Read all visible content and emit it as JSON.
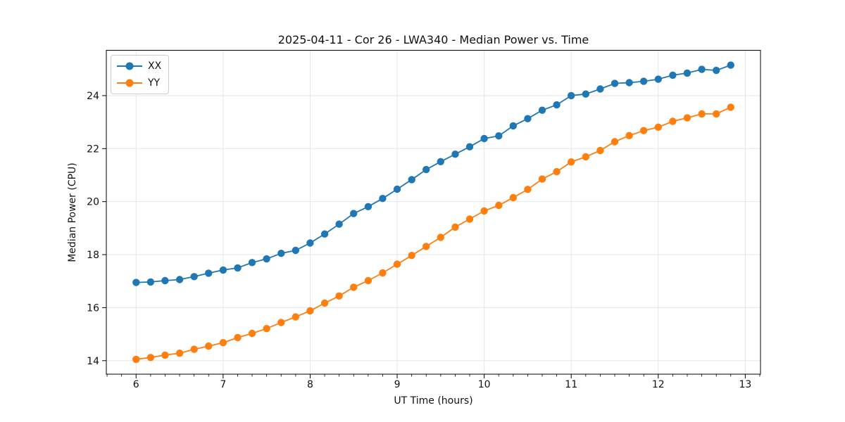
{
  "figure": {
    "title": "2025-04-11 - Cor 26 - LWA340 - Median Power vs. Time",
    "xlabel": "UT Time (hours)",
    "ylabel": "Median Power (CPU)"
  },
  "legend": {
    "position": "upper left",
    "items": [
      {
        "label": "XX",
        "color": "#1f77b4"
      },
      {
        "label": "YY",
        "color": "#ff7f0e"
      }
    ]
  },
  "colors": {
    "series_xx": "#1f77b4",
    "series_yy": "#ff7f0e",
    "grid": "#e6e6e6",
    "axis": "#000000",
    "text": "#111111",
    "background": "#ffffff"
  },
  "chart_data": {
    "type": "line",
    "title": "2025-04-11 - Cor 26 - LWA340 - Median Power vs. Time",
    "xlabel": "UT Time (hours)",
    "ylabel": "Median Power (CPU)",
    "grid": true,
    "legend_position": "upper left",
    "marker": "circle",
    "xlim": [
      5.658,
      13.175
    ],
    "ylim": [
      13.49,
      25.71
    ],
    "xticks": [
      6,
      7,
      8,
      9,
      10,
      11,
      12,
      13
    ],
    "yticks": [
      14,
      16,
      18,
      20,
      22,
      24
    ],
    "x_minor_step": 0.16667,
    "x": [
      6.0,
      6.167,
      6.333,
      6.5,
      6.667,
      6.833,
      7.0,
      7.167,
      7.333,
      7.5,
      7.667,
      7.833,
      8.0,
      8.167,
      8.333,
      8.5,
      8.667,
      8.833,
      9.0,
      9.167,
      9.333,
      9.5,
      9.667,
      9.833,
      10.0,
      10.167,
      10.333,
      10.5,
      10.667,
      10.833,
      11.0,
      11.167,
      11.333,
      11.5,
      11.667,
      11.833,
      12.0,
      12.167,
      12.333,
      12.5,
      12.667,
      12.833
    ],
    "series": [
      {
        "name": "XX",
        "color": "#1f77b4",
        "values": [
          16.95,
          16.97,
          17.02,
          17.06,
          17.17,
          17.3,
          17.42,
          17.5,
          17.7,
          17.84,
          18.05,
          18.16,
          18.44,
          18.78,
          19.15,
          19.55,
          19.81,
          20.12,
          20.47,
          20.83,
          21.21,
          21.51,
          21.79,
          22.07,
          22.38,
          22.48,
          22.86,
          23.13,
          23.45,
          23.65,
          24.0,
          24.06,
          24.25,
          24.46,
          24.49,
          24.54,
          24.62,
          24.77,
          24.85,
          24.99,
          24.95,
          25.15
        ]
      },
      {
        "name": "YY",
        "color": "#ff7f0e",
        "values": [
          14.05,
          14.12,
          14.21,
          14.28,
          14.43,
          14.55,
          14.68,
          14.87,
          15.03,
          15.21,
          15.44,
          15.65,
          15.88,
          16.17,
          16.44,
          16.77,
          17.02,
          17.31,
          17.64,
          17.97,
          18.31,
          18.65,
          19.04,
          19.34,
          19.65,
          19.86,
          20.15,
          20.46,
          20.85,
          21.13,
          21.5,
          21.69,
          21.93,
          22.26,
          22.49,
          22.68,
          22.81,
          23.03,
          23.16,
          23.31,
          23.31,
          23.56
        ]
      }
    ]
  }
}
